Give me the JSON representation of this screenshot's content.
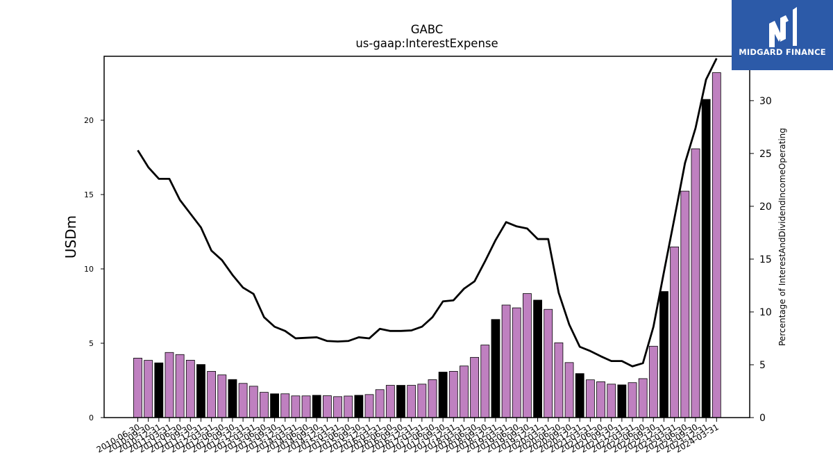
{
  "chart_data": {
    "type": "bar",
    "title": "GABC",
    "subtitle": "us-gaap:InterestExpense",
    "ylabel": "USDm",
    "y2label": "Percentage of InterestAndDividendIncomeOperating",
    "ylim": [
      0,
      24.3
    ],
    "y2lim": [
      0,
      34.2
    ],
    "yticks": [
      0,
      5,
      10,
      15,
      20
    ],
    "y2ticks": [
      0,
      5,
      10,
      15,
      20,
      25,
      30
    ],
    "grid": false,
    "categories": [
      "2010-06-30",
      "2010-09-30",
      "2010-12-31",
      "2011-03-31",
      "2011-06-30",
      "2011-09-30",
      "2011-12-31",
      "2012-03-31",
      "2012-06-30",
      "2012-09-30",
      "2012-12-31",
      "2013-03-31",
      "2013-06-30",
      "2013-09-30",
      "2013-12-31",
      "2014-03-31",
      "2014-06-30",
      "2014-09-30",
      "2014-12-31",
      "2015-03-31",
      "2015-06-30",
      "2015-09-30",
      "2015-12-31",
      "2016-03-31",
      "2016-06-30",
      "2016-09-30",
      "2016-12-31",
      "2017-03-31",
      "2017-06-30",
      "2017-09-30",
      "2017-12-31",
      "2018-03-31",
      "2018-06-30",
      "2018-09-30",
      "2018-12-31",
      "2019-03-31",
      "2019-06-30",
      "2019-09-30",
      "2019-12-31",
      "2020-03-31",
      "2020-06-30",
      "2020-09-30",
      "2020-12-31",
      "2021-03-31",
      "2021-06-30",
      "2021-09-30",
      "2021-12-31",
      "2022-03-31",
      "2022-06-30",
      "2022-09-30",
      "2022-12-31",
      "2023-03-31",
      "2023-06-30",
      "2023-09-30",
      "2023-12-31",
      "2024-03-31"
    ],
    "series": [
      {
        "type": "bar",
        "axis": "left",
        "values": [
          4.0,
          3.85,
          3.68,
          4.38,
          4.24,
          3.86,
          3.57,
          3.11,
          2.87,
          2.56,
          2.3,
          2.11,
          1.7,
          1.6,
          1.6,
          1.46,
          1.46,
          1.5,
          1.47,
          1.41,
          1.45,
          1.5,
          1.55,
          1.88,
          2.17,
          2.17,
          2.17,
          2.25,
          2.55,
          3.06,
          3.11,
          3.47,
          4.05,
          4.88,
          6.6,
          7.57,
          7.38,
          8.34,
          7.9,
          7.28,
          5.03,
          3.7,
          2.96,
          2.54,
          2.41,
          2.25,
          2.2,
          2.35,
          2.62,
          4.8,
          8.48,
          11.48,
          15.23,
          18.08,
          21.4,
          23.2
        ],
        "highlight_color": "#000000",
        "base_color": "#bf80c0",
        "highlight_indices": [
          2,
          6,
          9,
          13,
          17,
          21,
          25,
          29,
          34,
          38,
          42,
          46,
          50,
          54
        ]
      },
      {
        "type": "line",
        "axis": "right",
        "color": "#000000",
        "values": [
          25.3,
          23.7,
          22.6,
          22.6,
          20.6,
          19.3,
          18.0,
          15.8,
          14.9,
          13.5,
          12.3,
          11.7,
          9.5,
          8.6,
          8.2,
          7.5,
          7.55,
          7.6,
          7.25,
          7.2,
          7.25,
          7.6,
          7.5,
          8.4,
          8.2,
          8.2,
          8.25,
          8.6,
          9.5,
          11.0,
          11.1,
          12.2,
          12.9,
          14.8,
          16.8,
          18.5,
          18.1,
          17.9,
          16.9,
          16.9,
          11.8,
          8.8,
          6.7,
          6.3,
          5.8,
          5.35,
          5.35,
          4.85,
          5.15,
          8.6,
          13.8,
          18.9,
          24.1,
          27.4,
          32.0,
          34.0
        ]
      }
    ]
  },
  "logo": {
    "text": "MIDGARD FINANCE",
    "bg_color": "#2c5aa8"
  }
}
